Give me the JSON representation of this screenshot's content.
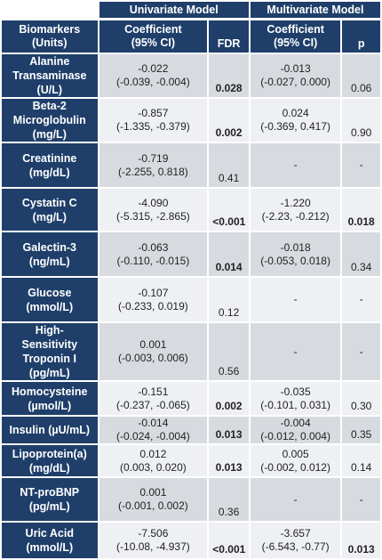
{
  "header": {
    "univariate": "Univariate Model",
    "multivariate": "Multivariate Model",
    "biomarkers": "Biomarkers",
    "units": "(Units)",
    "coef": "Coefficient",
    "ci": "(95% CI)",
    "fdr": "FDR",
    "p": "p"
  },
  "rows": [
    {
      "name": [
        "Alanine",
        "Transaminase",
        "(U/L)"
      ],
      "uni_coef": "-0.022",
      "uni_ci": "(-0.039, -0.004)",
      "fdr": "0.028",
      "fdr_bold": true,
      "multi_coef": "-0.013",
      "multi_ci": "(-0.027, 0.000)",
      "p": "0.06",
      "p_bold": false
    },
    {
      "name": [
        "Beta-2",
        "Microglobulin",
        "(mg/L)"
      ],
      "uni_coef": "-0.857",
      "uni_ci": "(-1.335, -0.379)",
      "fdr": "0.002",
      "fdr_bold": true,
      "multi_coef": "0.024",
      "multi_ci": "(-0.369, 0.417)",
      "p": "0.90",
      "p_bold": false
    },
    {
      "name": [
        "Creatinine",
        "(mg/dL)"
      ],
      "uni_coef": "-0.719",
      "uni_ci": "(-2.255, 0.818)",
      "fdr": "0.41",
      "fdr_bold": false,
      "multi_coef": "-",
      "multi_ci": "",
      "p": "-",
      "p_bold": false
    },
    {
      "name": [
        "Cystatin C",
        "(mg/L)"
      ],
      "uni_coef": "-4.090",
      "uni_ci": "(-5.315, -2.865)",
      "fdr": "<0.001",
      "fdr_bold": true,
      "multi_coef": "-1.220",
      "multi_ci": "(-2.23, -0.212)",
      "p": "0.018",
      "p_bold": true
    },
    {
      "name": [
        "Galectin-3",
        "(ng/mL)"
      ],
      "uni_coef": "-0.063",
      "uni_ci": "(-0.110, -0.015)",
      "fdr": "0.014",
      "fdr_bold": true,
      "multi_coef": "-0.018",
      "multi_ci": "(-0.053, 0.018)",
      "p": "0.34",
      "p_bold": false
    },
    {
      "name": [
        "Glucose",
        "(mmol/L)"
      ],
      "uni_coef": "-0.107",
      "uni_ci": "(-0.233, 0.019)",
      "fdr": "0.12",
      "fdr_bold": false,
      "multi_coef": "-",
      "multi_ci": "",
      "p": "-",
      "p_bold": false
    },
    {
      "name": [
        "High-",
        "Sensitivity",
        "Troponin I",
        "(pg/mL)"
      ],
      "uni_coef": "0.001",
      "uni_ci": "(-0.003, 0.006)",
      "fdr": "0.56",
      "fdr_bold": false,
      "multi_coef": "-",
      "multi_ci": "",
      "p": "-",
      "p_bold": false
    },
    {
      "name": [
        "Homocysteine",
        "(µmol/L)"
      ],
      "uni_coef": "-0.151",
      "uni_ci": "(-0.237, -0.065)",
      "fdr": "0.002",
      "fdr_bold": true,
      "multi_coef": "-0.035",
      "multi_ci": "(-0.101, 0.031)",
      "p": "0.30",
      "p_bold": false
    },
    {
      "name": [
        "Insulin (µU/mL)"
      ],
      "uni_coef": "-0.014",
      "uni_ci": "(-0.024, -0.004)",
      "fdr": "0.013",
      "fdr_bold": true,
      "multi_coef": "-0.004",
      "multi_ci": "(-0.012, 0.004)",
      "p": "0.35",
      "p_bold": false
    },
    {
      "name": [
        "Lipoprotein(a)",
        "(mg/dL)"
      ],
      "uni_coef": "0.012",
      "uni_ci": "(0.003, 0.020)",
      "fdr": "0.013",
      "fdr_bold": true,
      "multi_coef": "0.005",
      "multi_ci": "(-0.002, 0.012)",
      "p": "0.14",
      "p_bold": false
    },
    {
      "name": [
        "NT-proBNP",
        "(pg/mL)"
      ],
      "uni_coef": "0.001",
      "uni_ci": "(-0.001, 0.002)",
      "fdr": "0.36",
      "fdr_bold": false,
      "multi_coef": "-",
      "multi_ci": "",
      "p": "-",
      "p_bold": false
    },
    {
      "name": [
        "Uric Acid",
        "(mmol/L)"
      ],
      "uni_coef": "-7.506",
      "uni_ci": "(-10.08, -4.937)",
      "fdr": "<0.001",
      "fdr_bold": true,
      "multi_coef": "-3.657",
      "multi_ci": "(-6.543, -0.77)",
      "p": "0.013",
      "p_bold": true
    }
  ]
}
